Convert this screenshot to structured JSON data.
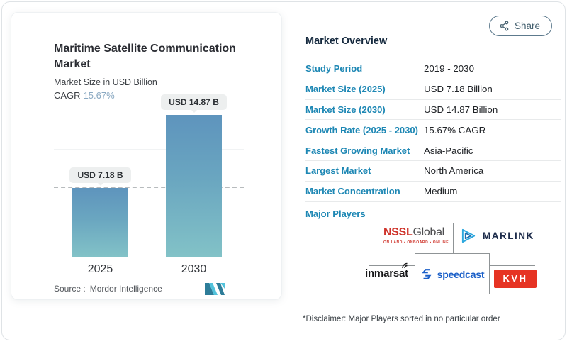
{
  "share": {
    "label": "Share"
  },
  "chart_card": {
    "title": "Maritime Satellite Communication Market",
    "subtitle": "Market Size in USD Billion",
    "cagr_label": "CAGR",
    "cagr_value": "15.67%",
    "source_label": "Source :",
    "source_value": "Mordor Intelligence"
  },
  "chart_data": {
    "type": "bar",
    "title": "Maritime Satellite Communication Market",
    "ylabel": "Market Size in USD Billion",
    "unit": "USD Billion",
    "categories": [
      "2025",
      "2030"
    ],
    "values": [
      7.18,
      14.87
    ],
    "value_labels": [
      "USD 7.18 B",
      "USD 14.87 B"
    ],
    "reference_line": 7.18,
    "grid": "off",
    "axes": "hidden",
    "bar_gradient": [
      "#5e94bd",
      "#82c2c7"
    ],
    "dashed_line_color": "#b7bbbd"
  },
  "overview": {
    "heading": "Market Overview",
    "rows": [
      {
        "label": "Study Period",
        "value": "2019 - 2030"
      },
      {
        "label": "Market Size (2025)",
        "value": "USD 7.18 Billion"
      },
      {
        "label": "Market Size (2030)",
        "value": "USD 14.87 Billion"
      },
      {
        "label": "Growth Rate (2025 - 2030)",
        "value": "15.67% CAGR"
      },
      {
        "label": "Fastest Growing Market",
        "value": "Asia-Pacific"
      },
      {
        "label": "Largest Market",
        "value": "North America"
      },
      {
        "label": "Market Concentration",
        "value": "Medium"
      }
    ],
    "major_players_label": "Major Players"
  },
  "players": {
    "nssl_bold": "NSSL",
    "nssl_rest": "Global",
    "nssl_tagline": "ON LAND ▪ ONBOARD ▪ ONLINE",
    "marlink": "MARLINK",
    "inmarsat": "inmarsat",
    "speedcast": "speedcast",
    "kvh": "KVH"
  },
  "disclaimer": "*Disclaimer: Major Players sorted in no particular order",
  "colors": {
    "label_blue": "#1d87b4",
    "cagr_blue": "#8aa9c2",
    "nssl_red": "#cf352c",
    "kvh_red": "#e63323",
    "speedcast_blue": "#1a5fc8",
    "marlink_navy": "#1c2b4a",
    "mordor_teal": "#2e7d99",
    "mordor_cyan": "#52c2db"
  }
}
